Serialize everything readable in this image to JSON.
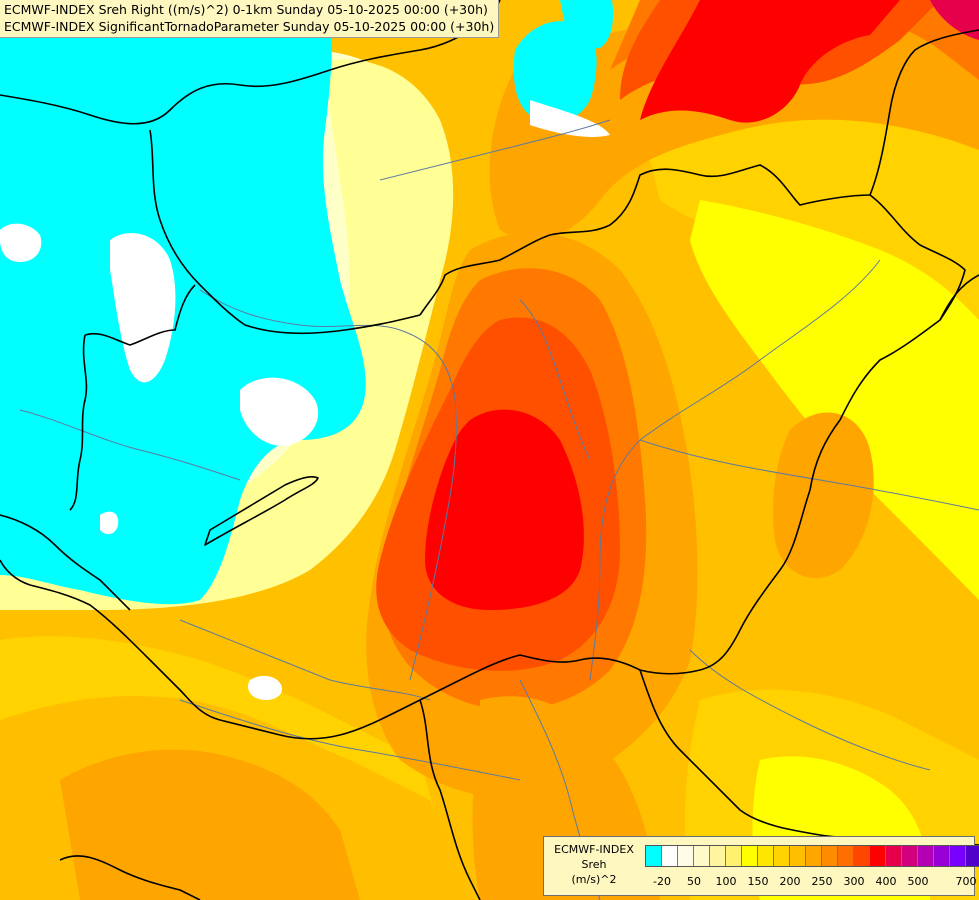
{
  "header": {
    "line1": "ECMWF-INDEX Sreh Right ((m/s)^2) 0-1km Sunday 05-10-2025 00:00 (+30h)",
    "line2": "ECMWF-INDEX SignificantTornadoParameter Sunday 05-10-2025 00:00 (+30h)"
  },
  "legend": {
    "title_line1": "ECMWF-INDEX",
    "title_line2": "Sreh",
    "title_line3": "(m/s)^2",
    "colors": [
      "#00ffff",
      "#ffffff",
      "#fffbe6",
      "#fffbc8",
      "#fff59e",
      "#fff06e",
      "#ffff00",
      "#ffe600",
      "#ffd200",
      "#ffbe00",
      "#ffa500",
      "#ff8c00",
      "#ff6e00",
      "#ff4600",
      "#ff0000",
      "#e6004b",
      "#d2007d",
      "#b400b4",
      "#9600d7",
      "#7800ff",
      "#5000c8",
      "#2d0096",
      "#000080"
    ],
    "ticks": [
      "-20",
      "50",
      "100",
      "150",
      "200",
      "250",
      "300",
      "400",
      "500",
      "700"
    ]
  },
  "map": {
    "fill_colors": {
      "cyan": "#00ffff",
      "white": "#ffffff",
      "cream": "#ffffc8",
      "pale_yellow": "#ffff96",
      "yellow": "#ffff00",
      "gold": "#ffd200",
      "amber": "#ffbe00",
      "orange": "#ffa500",
      "dark_orange": "#ff7800",
      "red_orange": "#ff5000",
      "red": "#ff0000",
      "crimson": "#e6004b"
    },
    "border_color": "#000000",
    "river_color": "#5c7aa0"
  }
}
